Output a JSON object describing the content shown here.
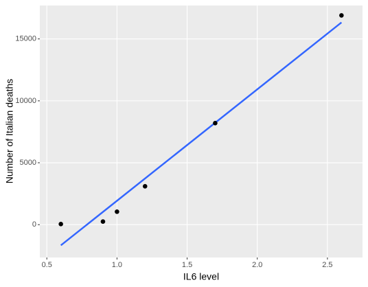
{
  "chart_data": {
    "type": "scatter",
    "xlabel": "IL6 level",
    "ylabel": "Number of Italian deaths",
    "x": [
      0.6,
      0.9,
      1.0,
      1.2,
      1.7,
      2.6
    ],
    "values": [
      50,
      250,
      1050,
      3100,
      8200,
      16900
    ],
    "color": "#000000",
    "fit": {
      "x": [
        0.6,
        2.6
      ],
      "values": [
        -1670,
        16330
      ],
      "color": "#3366ff"
    },
    "xlim": [
      0.45,
      2.75
    ],
    "ylim": [
      -2650,
      17700
    ],
    "xticks": [
      0.5,
      {
        "value": 1,
        "label": "1.0"
      },
      1.5,
      {
        "value": 2,
        "label": "2.0"
      },
      2.5
    ],
    "yticks": [
      0,
      5000,
      10000,
      15000
    ],
    "grid": true
  }
}
